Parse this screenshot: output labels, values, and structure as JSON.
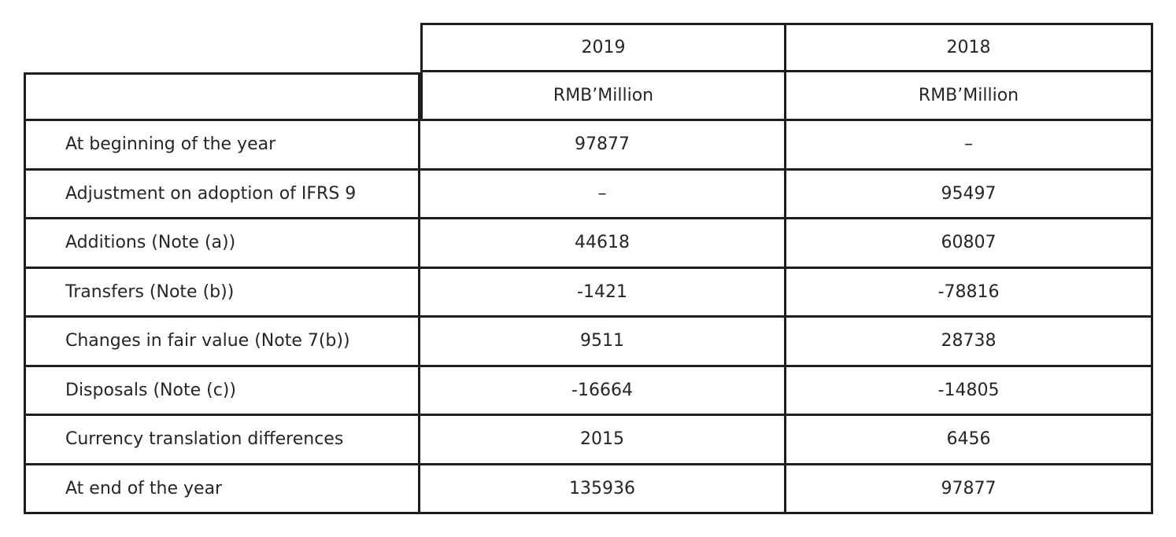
{
  "table": {
    "years": [
      "2019",
      "2018"
    ],
    "units": [
      "RMB’Million",
      "RMB’Million"
    ],
    "rows": [
      {
        "label": "At beginning of the year",
        "y2019": "97877",
        "y2018": "–"
      },
      {
        "label": "Adjustment on adoption of IFRS 9",
        "y2019": "–",
        "y2018": "95497"
      },
      {
        "label": "Additions (Note (a))",
        "y2019": "44618",
        "y2018": "60807"
      },
      {
        "label": "Transfers (Note (b))",
        "y2019": "-1421",
        "y2018": "-78816"
      },
      {
        "label": "Changes in fair value (Note 7(b))",
        "y2019": "9511",
        "y2018": "28738"
      },
      {
        "label": "Disposals (Note (c))",
        "y2019": "-16664",
        "y2018": "-14805"
      },
      {
        "label": "Currency translation differences",
        "y2019": "2015",
        "y2018": "6456"
      },
      {
        "label": "At end of the year",
        "y2019": "135936",
        "y2018": "97877"
      }
    ]
  }
}
